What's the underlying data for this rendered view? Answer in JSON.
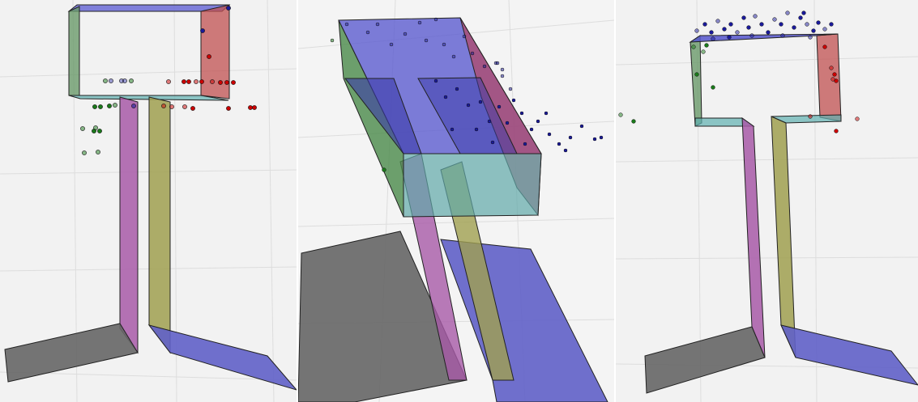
{
  "figure": {
    "panels": [
      {
        "id": "left-view",
        "view": "front-ortho"
      },
      {
        "id": "middle-view",
        "view": "top-oblique"
      },
      {
        "id": "right-view",
        "view": "front-ortho"
      }
    ],
    "colors": {
      "background": "#f2f2f2",
      "grid": "#dedede",
      "face_green": "#5a8a5a",
      "face_red": "#b04040",
      "face_blue": "#5555cc",
      "face_purple": "#a040a0",
      "face_olive": "#8a8a40",
      "face_gray": "#555555",
      "face_teal": "#40a0a0",
      "point_blue": "#1a1a9a",
      "point_red": "#cc0000",
      "point_green": "#1a7a1a"
    },
    "point_groups": [
      "blue",
      "red",
      "green"
    ]
  }
}
